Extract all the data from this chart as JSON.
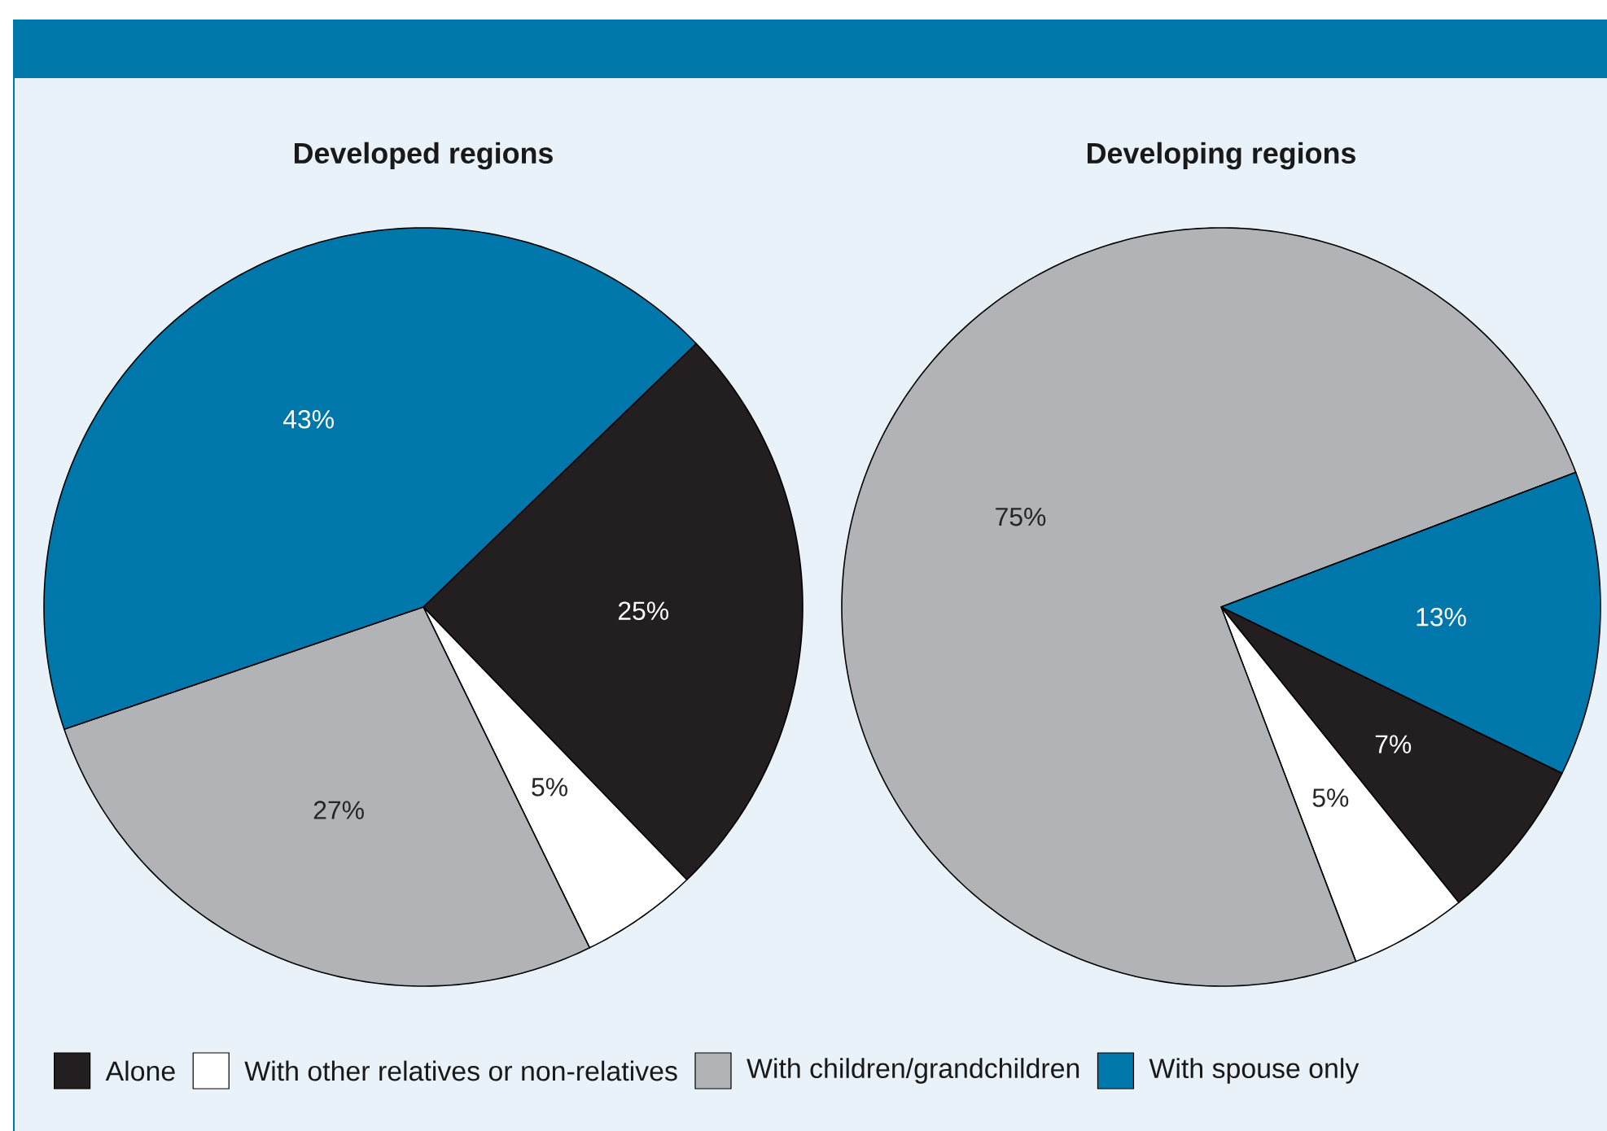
{
  "chart_data": [
    {
      "type": "pie",
      "title": "Developed regions",
      "categories": [
        "Alone",
        "With other relatives or non-relatives",
        "With children/grandchildren",
        "With spouse only"
      ],
      "values": [
        25,
        5,
        27,
        43
      ],
      "colors": [
        "#231f20",
        "#ffffff",
        "#b1b3b6",
        "#0077aa"
      ],
      "value_labels": [
        "25%",
        "5%",
        "27%",
        "43%"
      ],
      "legend": "bottom"
    },
    {
      "type": "pie",
      "title": "Developing regions",
      "categories": [
        null,
        null,
        null,
        null
      ],
      "values": [
        7,
        5,
        75,
        13
      ],
      "colors": [
        "#231f20",
        "#ffffff",
        "#b1b3b6",
        "#0077aa"
      ],
      "value_labels": [
        "7%",
        "5%",
        "75%",
        "13%"
      ]
    }
  ]
}
